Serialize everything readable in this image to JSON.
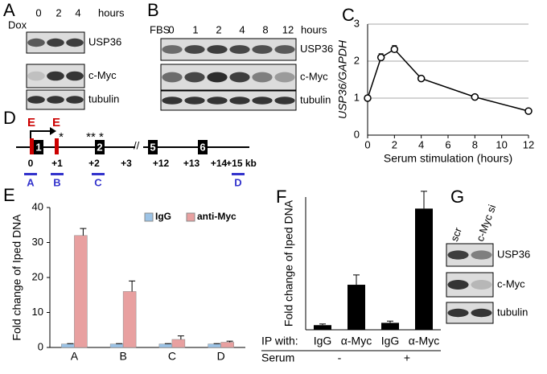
{
  "panels": {
    "labels": [
      "A",
      "B",
      "C",
      "D",
      "E",
      "F",
      "G"
    ]
  },
  "blot_a": {
    "treatment": "Dox",
    "lanes": [
      "0",
      "2",
      "4"
    ],
    "unit": "hours",
    "rows": [
      "USP36",
      "c-Myc",
      "tubulin"
    ]
  },
  "blot_b": {
    "treatment": "FBS",
    "lanes": [
      "0",
      "1",
      "2",
      "4",
      "8",
      "12"
    ],
    "unit": "hours",
    "rows": [
      "USP36",
      "c-Myc",
      "tubulin"
    ]
  },
  "blot_g": {
    "lanes": [
      "scr",
      "c-Myc si"
    ],
    "rows": [
      "USP36",
      "c-Myc",
      "tubulin"
    ]
  },
  "gene_diagram": {
    "ebox": [
      "E",
      "E"
    ],
    "exons": [
      "1",
      "2",
      "5",
      "6"
    ],
    "asterisks": [
      "*",
      "** *"
    ],
    "positions": [
      "0",
      "+1",
      "+2",
      "+3",
      "+12",
      "+13",
      "+14",
      "+15 kb"
    ],
    "amplicons": [
      "A",
      "B",
      "C",
      "D"
    ]
  },
  "chart_data": [
    {
      "type": "line",
      "ylabel": "USP36/GAPDH",
      "xlabel": "Serum stimulation (hours)",
      "x": [
        0,
        1,
        2,
        4,
        8,
        12
      ],
      "values": [
        1,
        2.1,
        2.32,
        1.53,
        1.03,
        0.65
      ],
      "errors": [
        0.05,
        0.1,
        0.1,
        0.04,
        0.05,
        0.04
      ],
      "xlim": [
        0,
        12
      ],
      "xticks": [
        0,
        2,
        4,
        6,
        8,
        10,
        12
      ],
      "ylim": [
        0,
        3
      ],
      "yticks": [
        0,
        1,
        2,
        3
      ],
      "grid": true,
      "color": "#000000"
    },
    {
      "type": "bar",
      "ylabel": "Fold change of Iped DNA",
      "categories": [
        "A",
        "B",
        "C",
        "D"
      ],
      "series": [
        {
          "name": "IgG",
          "color": "#9cc3e6",
          "values": [
            1,
            1,
            1,
            1
          ],
          "errors": [
            0.1,
            0.1,
            0.1,
            0.1
          ]
        },
        {
          "name": "anti-Myc",
          "color": "#e8a0a0",
          "values": [
            32,
            16,
            2.3,
            1.5
          ],
          "errors": [
            2,
            3,
            1,
            0.3
          ]
        }
      ],
      "ylim": [
        0,
        40
      ],
      "yticks": [
        0,
        10,
        20,
        30,
        40
      ],
      "legend": "top-right"
    },
    {
      "type": "bar",
      "ylabel": "Fold change of Iped DNA",
      "categories": [
        "IgG",
        "α-Myc",
        "IgG",
        "α-Myc"
      ],
      "values": [
        0.8,
        7.8,
        1.2,
        21
      ],
      "errors": [
        0.2,
        1.7,
        0.3,
        3
      ],
      "color": "#000000",
      "ylim": [
        0,
        23
      ],
      "row_labels": [
        "IP with:",
        "Serum"
      ],
      "serum_states": [
        "-",
        "+"
      ]
    }
  ]
}
